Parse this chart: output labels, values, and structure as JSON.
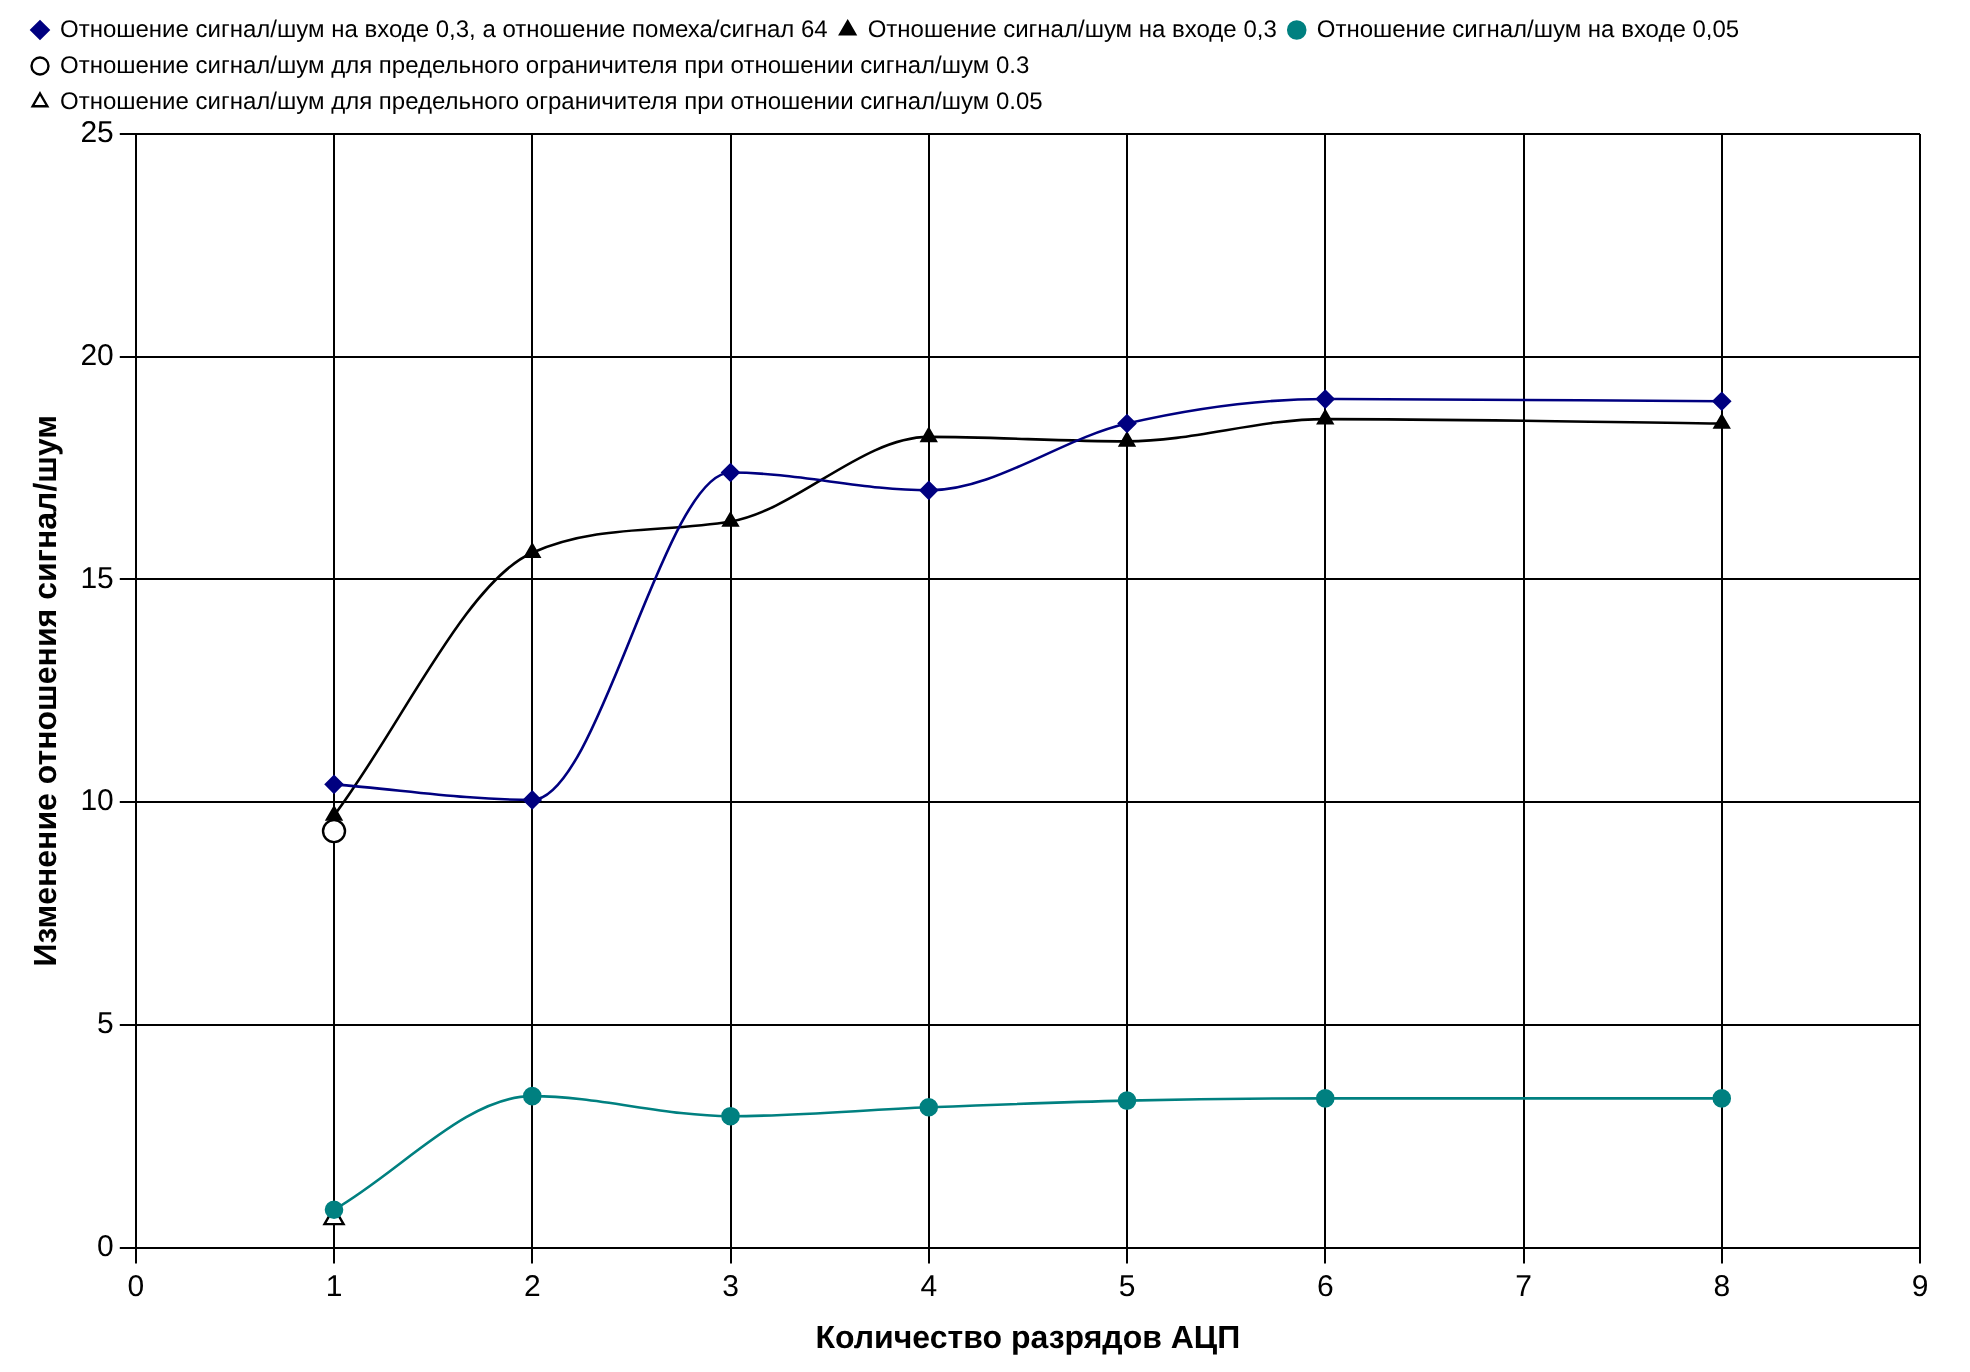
{
  "chart_data": {
    "type": "line",
    "xlabel": "Количество разрядов АЦП",
    "ylabel": "Изменение отношения сигнал/шум",
    "xlim": [
      0,
      9
    ],
    "xticks": [
      0,
      1,
      2,
      3,
      4,
      5,
      6,
      7,
      8,
      9
    ],
    "ylim": [
      0,
      25
    ],
    "yticks": [
      0,
      5,
      10,
      15,
      20,
      25
    ],
    "grid": true,
    "legend": "top",
    "line_style": "solid",
    "series": [
      {
        "name": "Отношение сигнал/шум на входе 0,3, а отношение помеха/сигнал 64",
        "color": "#000080",
        "marker": "diamond",
        "x": [
          1,
          2,
          3,
          4,
          5,
          6,
          8
        ],
        "values": [
          10.4,
          10.05,
          17.4,
          17.0,
          18.5,
          19.05,
          19.0
        ]
      },
      {
        "name": "Отношение сигнал/шум на входе 0,3",
        "color": "#000000",
        "marker": "triangle",
        "x": [
          1,
          2,
          3,
          4,
          5,
          6,
          8
        ],
        "values": [
          9.7,
          15.6,
          16.3,
          18.2,
          18.1,
          18.6,
          18.5
        ]
      },
      {
        "name": "Отношение сигнал/шум на входе 0,05",
        "color": "#008080",
        "marker": "circle",
        "x": [
          1,
          2,
          3,
          4,
          5,
          6,
          8
        ],
        "values": [
          0.85,
          3.4,
          2.95,
          3.15,
          3.3,
          3.35,
          3.35
        ]
      },
      {
        "name": "Отношение сигнал/шум для предельного ограничителя при отношении сигнал/шум 0.3",
        "type": "scatter",
        "color": "#000000",
        "marker": "circle",
        "x": [
          1
        ],
        "values": [
          9.35
        ]
      },
      {
        "name": "Отношение сигнал/шум для предельного ограничителя при отношении сигнал/шум 0.05",
        "type": "scatter",
        "color": "#000000",
        "marker": "triangle",
        "x": [
          1
        ],
        "values": [
          0.65
        ]
      }
    ]
  }
}
